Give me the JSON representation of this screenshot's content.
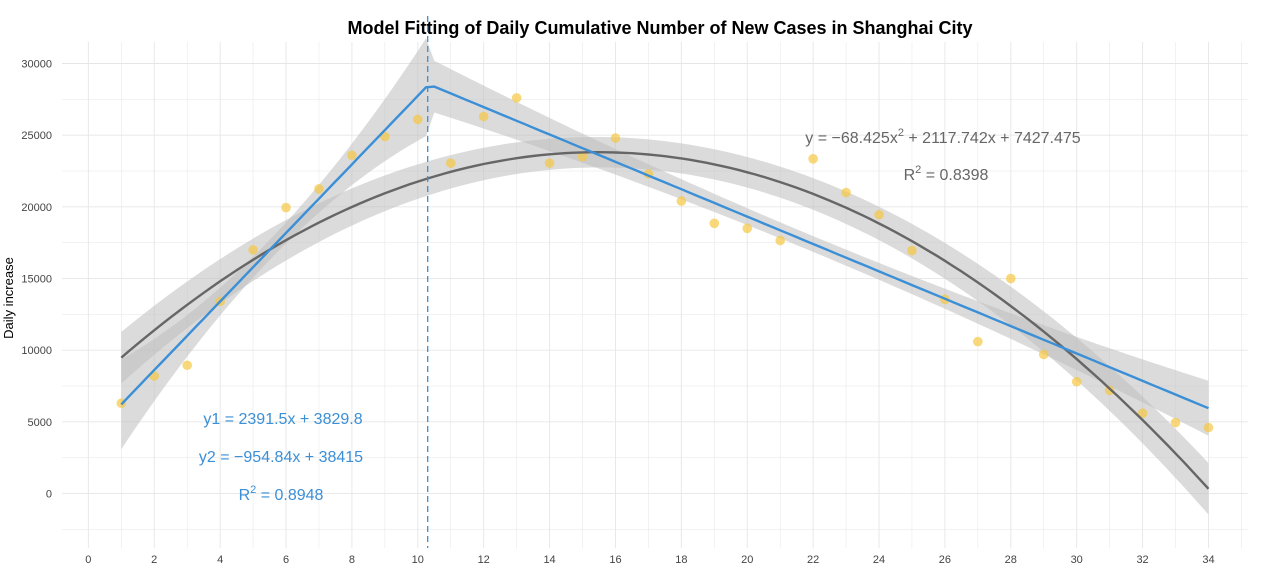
{
  "chart_data": {
    "type": "scatter",
    "title": "Model Fitting of Daily Cumulative Number of New Cases in Shanghai City",
    "xlabel": "",
    "ylabel": "Daily increase",
    "xlim": [
      -0.8,
      35.2
    ],
    "ylim": [
      -3800,
      31500
    ],
    "x_ticks": [
      0,
      2,
      4,
      6,
      8,
      10,
      12,
      14,
      16,
      18,
      20,
      22,
      24,
      26,
      28,
      30,
      32,
      34
    ],
    "y_ticks": [
      0,
      5000,
      10000,
      15000,
      20000,
      25000,
      30000
    ],
    "grid": true,
    "breakpoint_x": 10.3,
    "points": {
      "x": [
        1,
        2,
        3,
        4,
        5,
        6,
        7,
        8,
        9,
        10,
        11,
        12,
        13,
        14,
        15,
        16,
        17,
        18,
        19,
        20,
        21,
        22,
        23,
        24,
        25,
        26,
        27,
        28,
        29,
        30,
        31,
        32,
        33,
        34
      ],
      "y": [
        6300,
        8200,
        8950,
        13400,
        17000,
        19950,
        21250,
        23600,
        24900,
        26100,
        23050,
        26300,
        27600,
        23050,
        23500,
        24800,
        22300,
        20400,
        18850,
        18500,
        17650,
        23350,
        21000,
        19450,
        16950,
        13550,
        10600,
        15000,
        9700,
        7800,
        7200,
        5600,
        4950,
        4600
      ]
    },
    "series": [
      {
        "label": "y1 = 2391.5x + 3829.8",
        "color": "#3b8fd6",
        "segments": [
          {
            "slope": 2391.5,
            "intercept": 3829.8,
            "x_start": 1,
            "x_end": 10.3
          },
          {
            "slope": -954.84,
            "intercept": 38415,
            "x_start": 10.3,
            "x_end": 34
          }
        ]
      },
      {
        "label": "y = -68.425x^2 + 2117.742x + 7427.475",
        "color": "#666666",
        "quadratic": {
          "a": -68.425,
          "b": 2117.742,
          "c": 7427.475,
          "x_start": 1,
          "x_end": 34
        }
      }
    ],
    "annotations": {
      "y1_base": "y1 = 2391.5x + 3829.8",
      "y2_base": "y2 = −954.84x + 38415",
      "r2_blue_prefix": "R",
      "r2_blue_sup": "2",
      "r2_blue_value": " = 0.8948",
      "quad_prefix": "y = −68.425x",
      "quad_sup": "2",
      "quad_suffix": " + 2117.742x + 7427.475",
      "r2_gray_prefix": "R",
      "r2_gray_sup": "2",
      "r2_gray_value": " = 0.8398"
    },
    "colors": {
      "points": "#f5c842",
      "segmented": "#3b8fd6",
      "quadratic": "#666666",
      "band": "#bdbdbd",
      "grid": "#e6e6e6"
    }
  }
}
